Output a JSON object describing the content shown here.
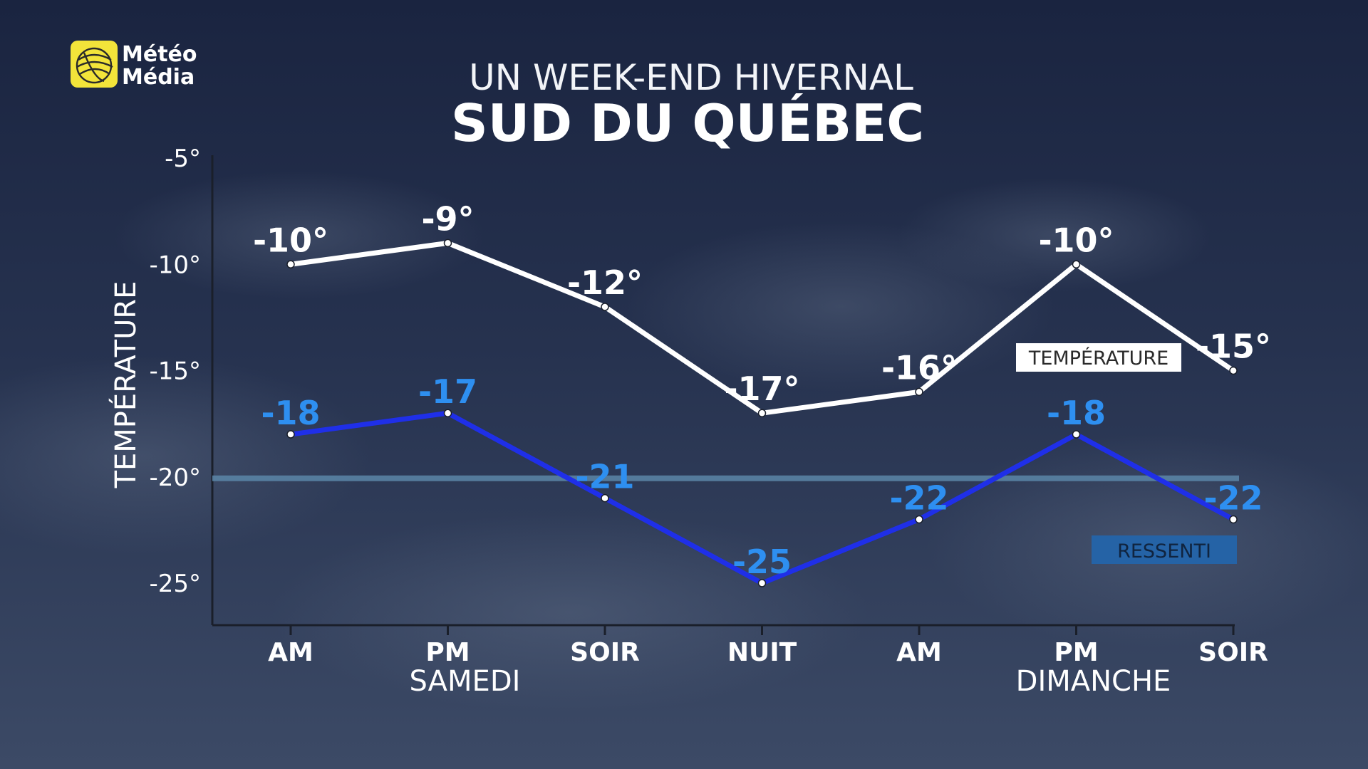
{
  "brand": {
    "line1": "Météo",
    "line2": "Média"
  },
  "header": {
    "subtitle": "UN WEEK-END HIVERNAL",
    "title": "SUD DU QUÉBEC"
  },
  "colors": {
    "background_top": "#1a2440",
    "background_bottom": "#3c4a66",
    "temperature": "#ffffff",
    "ressenti": "#1f2fe8",
    "ressenti_label": "#2e8ff0",
    "reference_line": "#5b86a8",
    "axis": "#1a1f2a",
    "logo": "#f3e43a"
  },
  "chart_data": {
    "type": "line",
    "ylabel": "TEMPÉRATURE",
    "ylim": [
      -27,
      -5
    ],
    "y_ticks": [
      -5,
      -10,
      -15,
      -20,
      -25
    ],
    "y_tick_labels": [
      "-5°",
      "-10°",
      "-15°",
      "-20°",
      "-25°"
    ],
    "categories": [
      "AM",
      "PM",
      "SOIR",
      "NUIT",
      "AM",
      "PM",
      "SOIR"
    ],
    "day_groups": [
      {
        "label": "SAMEDI",
        "index": 1
      },
      {
        "label": "DIMANCHE",
        "index": 5
      }
    ],
    "reference_line": -20,
    "series": [
      {
        "name": "TEMPÉRATURE",
        "values": [
          -10,
          -9,
          -12,
          -17,
          -16,
          -10,
          -15
        ],
        "labels": [
          "-10°",
          "-9°",
          "-12°",
          "-17°",
          "-16°",
          "-10°",
          "-15°"
        ]
      },
      {
        "name": "RESSENTI",
        "values": [
          -18,
          -17,
          -21,
          -25,
          -22,
          -18,
          -22
        ],
        "labels": [
          "-18",
          "-17",
          "-21",
          "-25",
          "-22",
          "-18",
          "-22"
        ]
      }
    ],
    "legend": [
      "TEMPÉRATURE",
      "RESSENTI"
    ],
    "grid": false
  }
}
